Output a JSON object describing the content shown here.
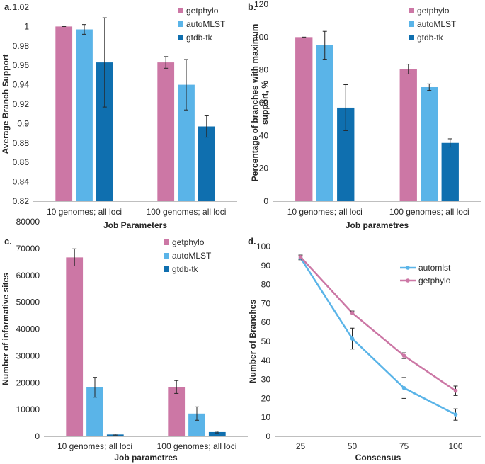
{
  "colors": {
    "getphylo": "#cc77a5",
    "autoMLST": "#5ab4e8",
    "gtdb-tk": "#0f6faf",
    "automlst_line": "#5ab4e8",
    "getphylo_line": "#cc77a5"
  },
  "chart_data": [
    {
      "panel": "a.",
      "type": "bar",
      "ylabel": "Average Branch Support",
      "xlabel": "Job Parameters",
      "categories": [
        "10 genomes; all loci",
        "100 genomes; all loci"
      ],
      "ylim": [
        0.82,
        1.02
      ],
      "yticks": [
        "0.82",
        "0.84",
        "0.86",
        "0.88",
        "0.9",
        "0.92",
        "0.94",
        "0.96",
        "0.98",
        "1",
        "1.02"
      ],
      "legend_position": "top-right",
      "series": [
        {
          "name": "getphylo",
          "values": [
            1.0,
            0.963
          ],
          "errors": [
            0.0,
            0.006
          ]
        },
        {
          "name": "autoMLST",
          "values": [
            0.997,
            0.94
          ],
          "errors": [
            0.005,
            0.026
          ]
        },
        {
          "name": "gtdb-tk",
          "values": [
            0.963,
            0.897
          ],
          "errors": [
            0.046,
            0.011
          ]
        }
      ]
    },
    {
      "panel": "b.",
      "type": "bar",
      "ylabel": "Percentage of branches with maximum support, %",
      "xlabel": "Job parametres",
      "categories": [
        "10 genomes; all loci",
        "100 genomes; all loci"
      ],
      "ylim": [
        0,
        120
      ],
      "yticks": [
        "0",
        "20",
        "40",
        "60",
        "80",
        "100",
        "120"
      ],
      "legend_position": "top-right",
      "series": [
        {
          "name": "getphylo",
          "values": [
            100,
            80.5
          ],
          "errors": [
            0,
            3
          ]
        },
        {
          "name": "autoMLST",
          "values": [
            95,
            69.5
          ],
          "errors": [
            8.5,
            2
          ]
        },
        {
          "name": "gtdb-tk",
          "values": [
            57,
            35.5
          ],
          "errors": [
            14,
            2.5
          ]
        }
      ]
    },
    {
      "panel": "c.",
      "type": "bar",
      "ylabel": "Number of informative sites",
      "xlabel": "Job parametres",
      "categories": [
        "10 genomes; all loci",
        "100 genomes; all loci"
      ],
      "ylim": [
        0,
        80000
      ],
      "yticks": [
        "0",
        "10000",
        "20000",
        "30000",
        "40000",
        "50000",
        "60000",
        "70000",
        "80000"
      ],
      "legend_position": "top-right",
      "series": [
        {
          "name": "getphylo",
          "values": [
            66700,
            18400
          ],
          "errors": [
            3200,
            2400
          ]
        },
        {
          "name": "autoMLST",
          "values": [
            18300,
            8500
          ],
          "errors": [
            3700,
            2500
          ]
        },
        {
          "name": "gtdb-tk",
          "values": [
            700,
            1600
          ],
          "errors": [
            200,
            300
          ]
        }
      ]
    },
    {
      "panel": "d.",
      "type": "line",
      "ylabel": "Number of Branches",
      "xlabel": "Consensus",
      "x": [
        "25",
        "50",
        "75",
        "100"
      ],
      "ylim": [
        0,
        100
      ],
      "yticks": [
        "0",
        "10",
        "20",
        "30",
        "40",
        "50",
        "60",
        "70",
        "80",
        "90",
        "100"
      ],
      "legend_position": "top-right",
      "series": [
        {
          "name": "automlst",
          "values": [
            94,
            51.5,
            25.5,
            11.5
          ],
          "errors": [
            1,
            5.5,
            5.5,
            3
          ]
        },
        {
          "name": "getphylo",
          "values": [
            94.5,
            65,
            42.5,
            24
          ],
          "errors": [
            1,
            1,
            1.5,
            2.5
          ]
        }
      ]
    }
  ]
}
